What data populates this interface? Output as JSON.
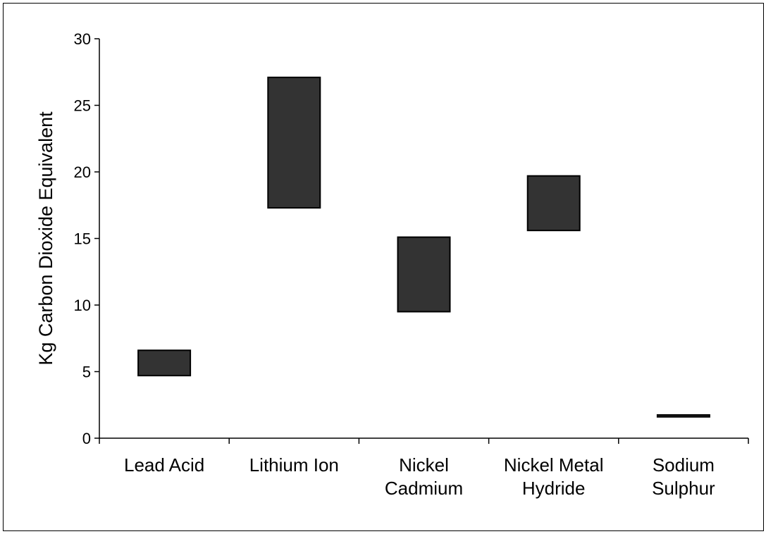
{
  "chart_data": {
    "type": "bar",
    "subtype": "floating-range",
    "title": "",
    "xlabel": "",
    "ylabel": "Kg Carbon Dioxide Equivalent",
    "ylim": [
      0,
      30
    ],
    "yticks": [
      0,
      5,
      10,
      15,
      20,
      25,
      30
    ],
    "grid": false,
    "legend": "none",
    "categories": [
      [
        "Lead Acid"
      ],
      [
        "Lithium Ion"
      ],
      [
        "Nickel",
        "Cadmium"
      ],
      [
        "Nickel Metal",
        "Hydride"
      ],
      [
        "Sodium",
        "Sulphur"
      ]
    ],
    "ranges": [
      [
        4.7,
        6.6
      ],
      [
        17.3,
        27.1
      ],
      [
        9.5,
        15.1
      ],
      [
        15.6,
        19.7
      ],
      [
        1.6,
        1.75
      ]
    ],
    "colors": {
      "bar_fill": "#333333",
      "bar_stroke": "#000000",
      "axis": "#000000"
    }
  }
}
